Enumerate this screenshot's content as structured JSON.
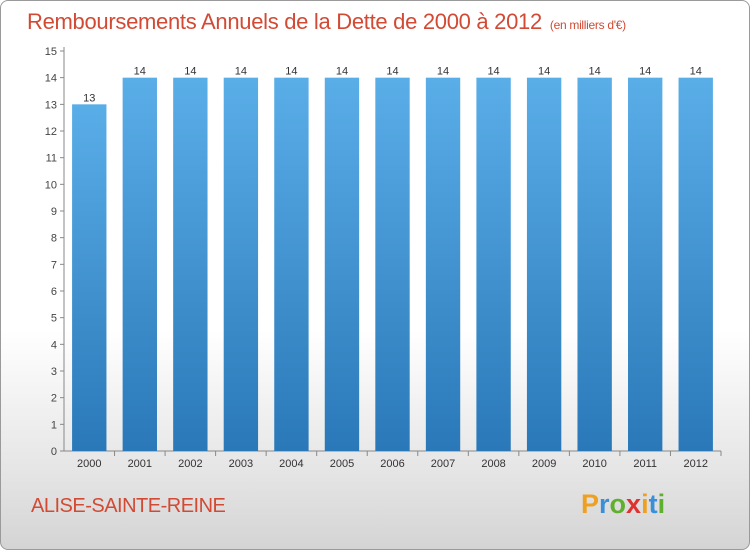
{
  "header": {
    "title": "Remboursements Annuels de la Dette de 2000 à 2012",
    "subtitle": "(en milliers d'€)"
  },
  "footer": {
    "city": "ALISE-SAINTE-REINE",
    "logo": "Proxiti"
  },
  "colors": {
    "title": "#d24a34",
    "bar_light": "#5aaee8",
    "bar_dark": "#2a78b8",
    "logo_letters": [
      "#f0a020",
      "#3a8fd8",
      "#60b030",
      "#e03030",
      "#f0a020",
      "#3a8fd8",
      "#60b030"
    ]
  },
  "chart_data": {
    "type": "bar",
    "categories": [
      "2000",
      "2001",
      "2002",
      "2003",
      "2004",
      "2005",
      "2006",
      "2007",
      "2008",
      "2009",
      "2010",
      "2011",
      "2012"
    ],
    "values": [
      13,
      14,
      14,
      14,
      14,
      14,
      14,
      14,
      14,
      14,
      14,
      14,
      14
    ],
    "data_labels": [
      "13",
      "14",
      "14",
      "14",
      "14",
      "14",
      "14",
      "14",
      "14",
      "14",
      "14",
      "14",
      "14"
    ],
    "yticks": [
      0,
      1,
      2,
      3,
      4,
      5,
      6,
      7,
      8,
      9,
      10,
      11,
      12,
      13,
      14,
      15
    ],
    "ylim": [
      0,
      15
    ],
    "title": "Remboursements Annuels de la Dette de 2000 à 2012",
    "subtitle": "(en milliers d'€)",
    "grid": false,
    "legend": "none"
  }
}
